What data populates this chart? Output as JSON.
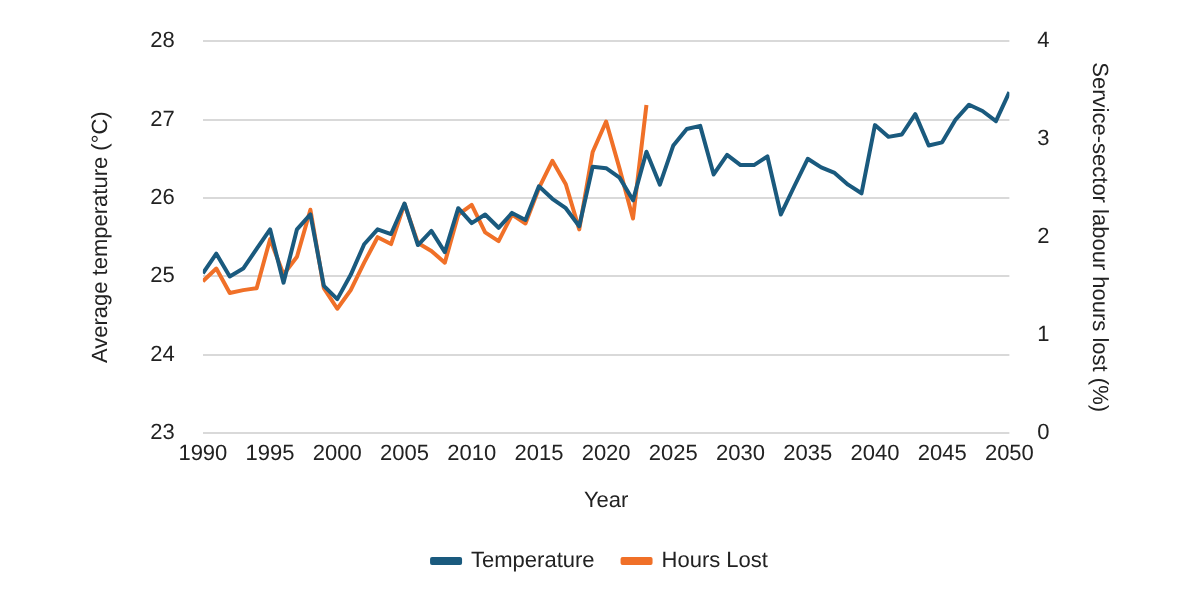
{
  "chart_data": {
    "type": "line",
    "xlabel": "Year",
    "ylabel": "Average temperature (°C)",
    "y2label": "Service-sector labour hours lost (%)",
    "xlim": [
      1990,
      2050
    ],
    "xticks": [
      1990,
      1995,
      2000,
      2005,
      2010,
      2015,
      2020,
      2025,
      2030,
      2035,
      2040,
      2045,
      2050
    ],
    "ylim": [
      23,
      28
    ],
    "yticks": [
      23,
      24,
      25,
      26,
      27,
      28
    ],
    "y2lim": [
      0,
      4
    ],
    "y2ticks": [
      0,
      1,
      2,
      3,
      4
    ],
    "grid": "y",
    "legend": "bottom",
    "marker": "none",
    "line_style": "solid",
    "series": [
      {
        "name": "Temperature",
        "color": "#1a5a7e",
        "x": [
          1990,
          1991,
          1992,
          1993,
          1994,
          1995,
          1996,
          1997,
          1998,
          1999,
          2000,
          2001,
          2002,
          2003,
          2004,
          2005,
          2006,
          2007,
          2008,
          2009,
          2010,
          2011,
          2012,
          2013,
          2014,
          2015,
          2016,
          2017,
          2018,
          2019,
          2020,
          2021,
          2022,
          2023,
          2024,
          2025,
          2026,
          2027,
          2028,
          2029,
          2030,
          2031,
          2032,
          2033,
          2034,
          2035,
          2036,
          2037,
          2038,
          2039,
          2040,
          2041,
          2042,
          2043,
          2044,
          2045,
          2046,
          2047,
          2048,
          2049,
          2050
        ],
        "values": [
          25.04,
          25.29,
          25.0,
          25.1,
          25.35,
          25.6,
          24.92,
          25.6,
          25.79,
          24.88,
          24.71,
          25.02,
          25.41,
          25.6,
          25.54,
          25.93,
          25.4,
          25.58,
          25.31,
          25.87,
          25.68,
          25.79,
          25.62,
          25.81,
          25.72,
          26.15,
          25.99,
          25.87,
          25.64,
          26.4,
          26.38,
          26.26,
          25.97,
          26.59,
          26.17,
          26.67,
          26.88,
          26.92,
          26.3,
          26.55,
          26.42,
          26.42,
          26.53,
          25.79,
          26.15,
          26.5,
          26.39,
          26.32,
          26.17,
          26.06,
          26.93,
          26.78,
          26.81,
          27.07,
          26.67,
          26.71,
          27.0,
          27.19,
          27.11,
          26.98,
          27.35
        ]
      },
      {
        "name": "Hours Lost",
        "color": "#f07028",
        "axis": "y2",
        "x": [
          1990,
          1991,
          1992,
          1993,
          1994,
          1995,
          1996,
          1997,
          1998,
          1999,
          2000,
          2001,
          2002,
          2003,
          2004,
          2005,
          2006,
          2007,
          2008,
          2009,
          2010,
          2011,
          2012,
          2013,
          2014,
          2015,
          2016,
          2017,
          2018,
          2019,
          2020,
          2021,
          2022,
          2023
        ],
        "values": [
          1.55,
          1.68,
          1.43,
          1.46,
          1.48,
          1.98,
          1.62,
          1.8,
          2.28,
          1.48,
          1.27,
          1.46,
          1.74,
          2.0,
          1.93,
          2.34,
          1.94,
          1.86,
          1.74,
          2.23,
          2.33,
          2.05,
          1.96,
          2.23,
          2.14,
          2.5,
          2.78,
          2.54,
          2.08,
          2.87,
          3.18,
          2.7,
          2.19,
          3.35
        ]
      }
    ]
  }
}
